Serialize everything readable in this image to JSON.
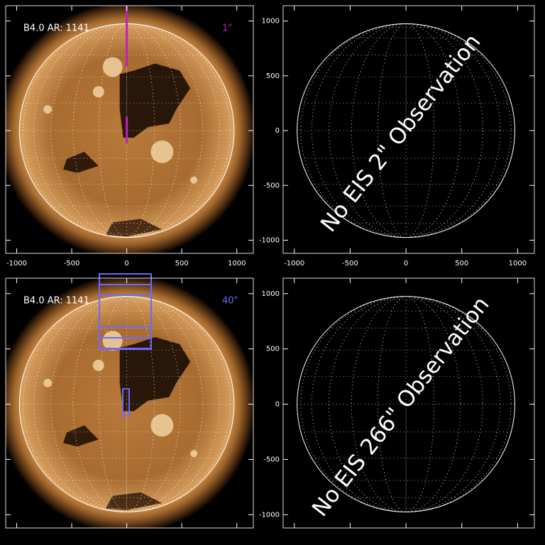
{
  "chart_data": [
    {
      "type": "image",
      "title": "B4.0 AR: 1141",
      "annotation": "1\"",
      "annotation_color": "#c020c0",
      "xlim": [
        -1100,
        1150
      ],
      "ylim": [
        -1120,
        1140
      ],
      "xticks": [
        -1000,
        -500,
        0,
        500,
        1000
      ],
      "yticks": [
        -1000,
        -500,
        0,
        500,
        1000
      ],
      "xtick_labels": true,
      "ytick_labels": false
    },
    {
      "type": "empty",
      "annotation": "No EIS 2\" Observation",
      "xlim": [
        -1100,
        1150
      ],
      "ylim": [
        -1120,
        1140
      ],
      "xticks": [
        -1000,
        -500,
        0,
        500,
        1000
      ],
      "yticks": [
        -1000,
        -500,
        0,
        500,
        1000
      ],
      "xtick_labels": true,
      "ytick_labels": true
    },
    {
      "type": "image",
      "title": "B4.0 AR: 1141",
      "annotation": "40\"",
      "annotation_color": "#6a6aff",
      "xlim": [
        -1100,
        1150
      ],
      "ylim": [
        -1120,
        1140
      ],
      "xticks": [
        -1000,
        -500,
        0,
        500,
        1000
      ],
      "yticks": [
        -1000,
        -500,
        0,
        500,
        1000
      ],
      "xtick_labels": false,
      "ytick_labels": false
    },
    {
      "type": "empty",
      "annotation": "No EIS 266\" Observation",
      "xlim": [
        -1100,
        1150
      ],
      "ylim": [
        -1120,
        1140
      ],
      "xticks": [
        -1000,
        -500,
        0,
        500,
        1000
      ],
      "yticks": [
        -1000,
        -500,
        0,
        500,
        1000
      ],
      "xtick_labels": false,
      "ytick_labels": true
    }
  ]
}
